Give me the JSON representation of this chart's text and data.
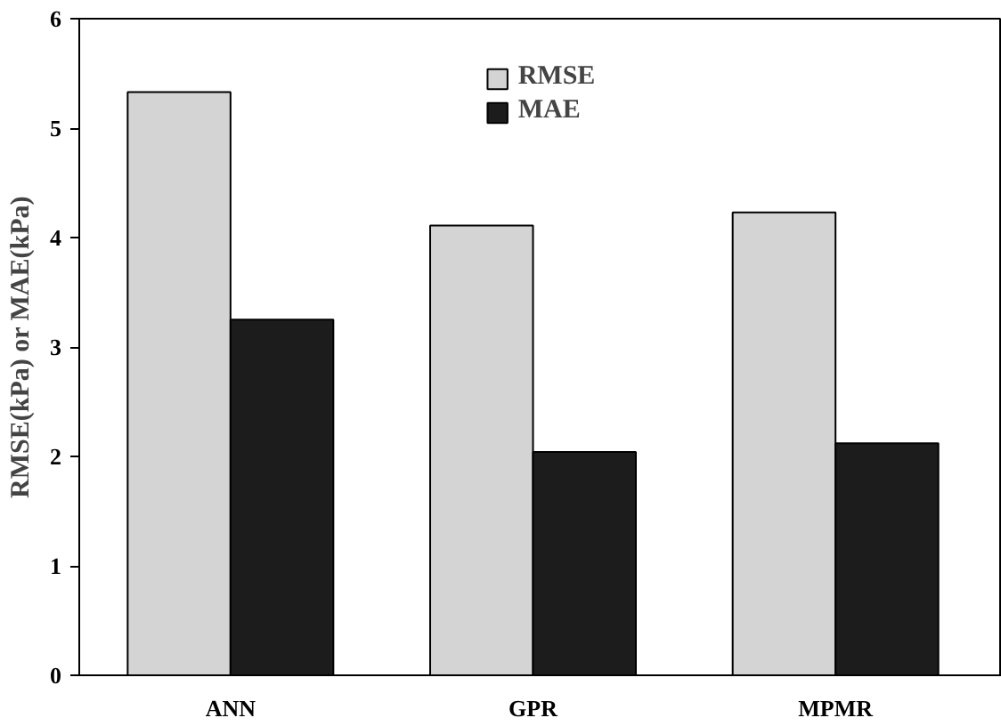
{
  "chart_data": {
    "type": "bar",
    "ylabel": "RMSE(kPa) or MAE(kPa)",
    "categories": [
      "ANN",
      "GPR",
      "MPMR"
    ],
    "series": [
      {
        "name": "RMSE",
        "color": "#d4d4d4",
        "values": [
          5.33,
          4.11,
          4.23
        ]
      },
      {
        "name": "MAE",
        "color": "#1c1c1c",
        "values": [
          3.25,
          2.04,
          2.12
        ]
      }
    ],
    "ylim": [
      0,
      6
    ],
    "yticks": [
      0,
      1,
      2,
      3,
      4,
      5,
      6
    ],
    "grid": false,
    "legend": "top"
  }
}
